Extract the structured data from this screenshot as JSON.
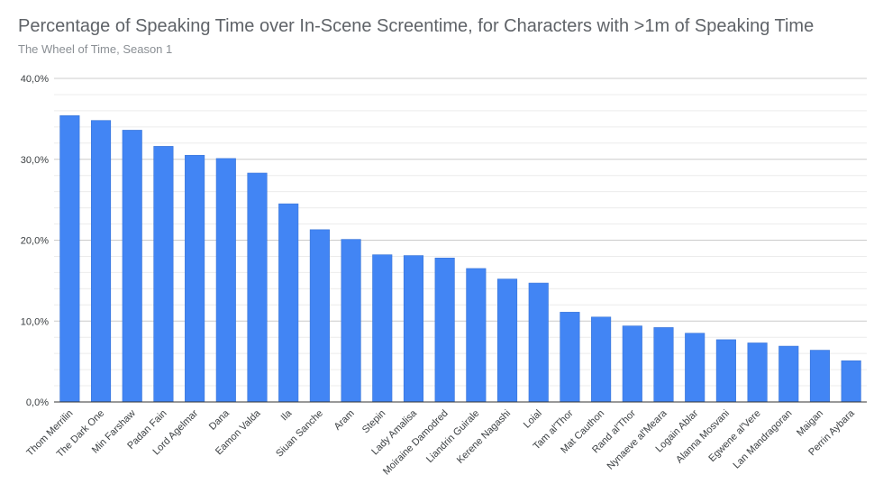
{
  "chart_data": {
    "type": "bar",
    "title": "Percentage of Speaking Time over In-Scene Screentime, for Characters with >1m of Speaking Time",
    "subtitle": "The Wheel of Time, Season 1",
    "xlabel": "",
    "ylabel": "",
    "ylim": [
      0,
      40
    ],
    "yticks": [
      0,
      10,
      20,
      30,
      40
    ],
    "ytick_labels": [
      "0,0%",
      "10,0%",
      "20,0%",
      "30,0%",
      "40,0%"
    ],
    "grid": true,
    "legend": "none",
    "bar_color": "#4285f4",
    "categories": [
      "Thom Merrilin",
      "The Dark One",
      "Min Farshaw",
      "Padan Fain",
      "Lord Agelmar",
      "Dana",
      "Eamon Valda",
      "Ila",
      "Siuan Sanche",
      "Aram",
      "Stepin",
      "Lady Amalisa",
      "Moiraine Damodred",
      "Liandrin Guirale",
      "Kerene Nagashi",
      "Loial",
      "Tam al'Thor",
      "Mat Cauthon",
      "Rand al'Thor",
      "Nynaeve al'Meara",
      "Logain Ablar",
      "Alanna Mosvani",
      "Egwene al'Vere",
      "Lan Mandragoran",
      "Maigan",
      "Perrin Aybara"
    ],
    "values": [
      35.4,
      34.8,
      33.6,
      31.6,
      30.5,
      30.1,
      28.3,
      24.5,
      21.3,
      20.1,
      18.2,
      18.1,
      17.8,
      16.5,
      15.2,
      14.7,
      11.1,
      10.5,
      9.4,
      9.2,
      8.5,
      7.7,
      7.3,
      6.9,
      6.4,
      5.1
    ]
  }
}
